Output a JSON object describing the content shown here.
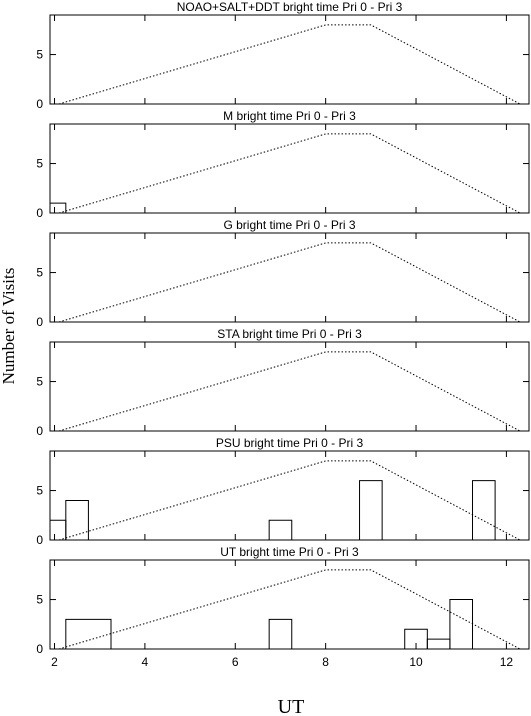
{
  "figure": {
    "ylabel": "Number of Visits",
    "xlabel": "UT"
  },
  "chart_data": [
    {
      "type": "bar",
      "title": "NOAO+SALT+DDT    bright time Pri 0 - Pri 3",
      "xlim": [
        1.9,
        12.5
      ],
      "ylim": [
        0,
        9
      ],
      "yticks": [
        0,
        5
      ],
      "xticks": [
        2,
        4,
        6,
        8,
        10,
        12
      ],
      "xtick_labels": [],
      "bins": [],
      "envelope": [
        [
          2.1,
          0
        ],
        [
          8.0,
          8.0
        ],
        [
          9.0,
          8.0
        ],
        [
          12.3,
          0
        ]
      ]
    },
    {
      "type": "bar",
      "title": "M    bright time Pri 0 - Pri 3",
      "xlim": [
        1.9,
        12.5
      ],
      "ylim": [
        0,
        9
      ],
      "yticks": [
        0,
        5
      ],
      "xticks": [
        2,
        4,
        6,
        8,
        10,
        12
      ],
      "xtick_labels": [],
      "bins": [
        {
          "x0": 1.9,
          "x1": 2.25,
          "value": 1
        }
      ],
      "envelope": [
        [
          2.1,
          0
        ],
        [
          8.0,
          8.0
        ],
        [
          9.0,
          8.0
        ],
        [
          12.3,
          0
        ]
      ]
    },
    {
      "type": "bar",
      "title": "G    bright time Pri 0 - Pri 3",
      "xlim": [
        1.9,
        12.5
      ],
      "ylim": [
        0,
        9
      ],
      "yticks": [
        0,
        5
      ],
      "xticks": [
        2,
        4,
        6,
        8,
        10,
        12
      ],
      "xtick_labels": [],
      "bins": [],
      "envelope": [
        [
          2.1,
          0
        ],
        [
          8.0,
          8.0
        ],
        [
          9.0,
          8.0
        ],
        [
          12.3,
          0
        ]
      ]
    },
    {
      "type": "bar",
      "title": "STA    bright time Pri 0 - Pri 3",
      "xlim": [
        1.9,
        12.5
      ],
      "ylim": [
        0,
        9
      ],
      "yticks": [
        0,
        5
      ],
      "xticks": [
        2,
        4,
        6,
        8,
        10,
        12
      ],
      "xtick_labels": [],
      "bins": [],
      "envelope": [
        [
          2.1,
          0
        ],
        [
          8.0,
          8.0
        ],
        [
          9.0,
          8.0
        ],
        [
          12.3,
          0
        ]
      ]
    },
    {
      "type": "bar",
      "title": "PSU    bright time Pri 0 - Pri 3",
      "xlim": [
        1.9,
        12.5
      ],
      "ylim": [
        0,
        9
      ],
      "yticks": [
        0,
        5
      ],
      "xticks": [
        2,
        4,
        6,
        8,
        10,
        12
      ],
      "xtick_labels": [],
      "bins": [
        {
          "x0": 1.9,
          "x1": 2.25,
          "value": 2
        },
        {
          "x0": 2.25,
          "x1": 2.75,
          "value": 4
        },
        {
          "x0": 6.75,
          "x1": 7.25,
          "value": 2
        },
        {
          "x0": 8.75,
          "x1": 9.25,
          "value": 6
        },
        {
          "x0": 11.25,
          "x1": 11.75,
          "value": 6
        }
      ],
      "envelope": [
        [
          2.1,
          0
        ],
        [
          8.0,
          8.0
        ],
        [
          9.0,
          8.0
        ],
        [
          12.3,
          0
        ]
      ]
    },
    {
      "type": "bar",
      "title": "UT    bright time Pri 0 - Pri 3",
      "xlim": [
        1.9,
        12.5
      ],
      "ylim": [
        0,
        9
      ],
      "yticks": [
        0,
        5
      ],
      "xticks": [
        2,
        4,
        6,
        8,
        10,
        12
      ],
      "xtick_labels": [
        "2",
        "4",
        "6",
        "8",
        "10",
        "12"
      ],
      "bins": [
        {
          "x0": 2.25,
          "x1": 3.25,
          "value": 3
        },
        {
          "x0": 6.75,
          "x1": 7.25,
          "value": 3
        },
        {
          "x0": 9.75,
          "x1": 10.25,
          "value": 2
        },
        {
          "x0": 10.25,
          "x1": 10.75,
          "value": 1
        },
        {
          "x0": 10.75,
          "x1": 11.25,
          "value": 5
        }
      ],
      "envelope": [
        [
          2.1,
          0
        ],
        [
          8.0,
          8.0
        ],
        [
          9.0,
          8.0
        ],
        [
          12.3,
          0
        ]
      ]
    }
  ]
}
